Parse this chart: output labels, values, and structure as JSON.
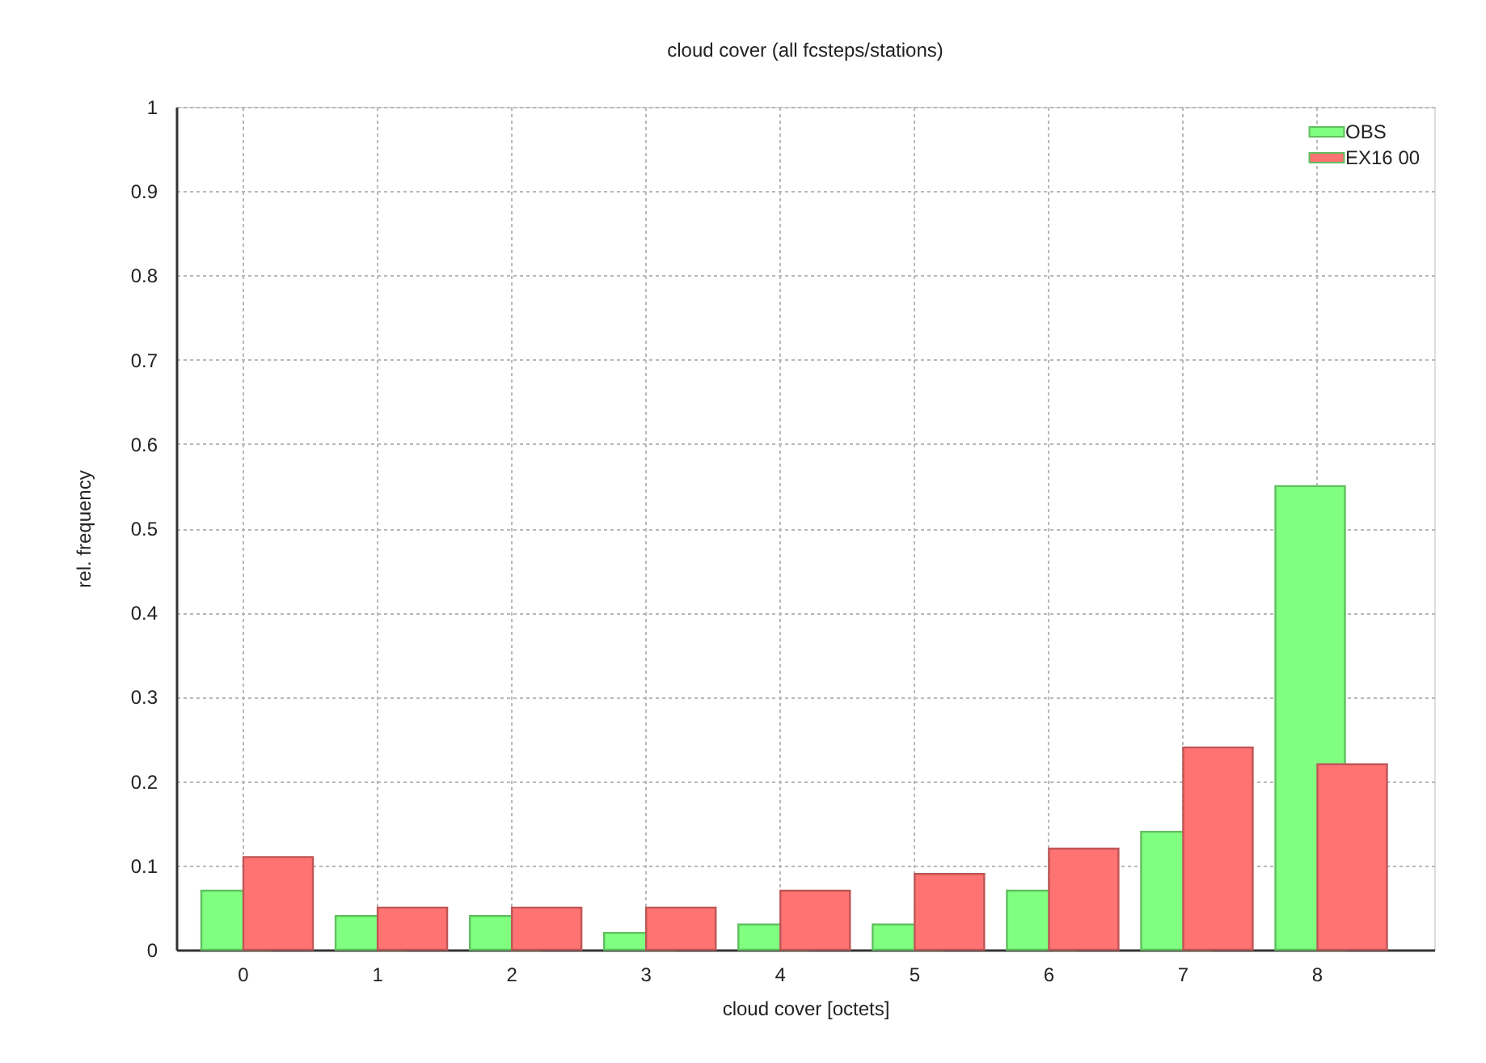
{
  "chart_data": {
    "type": "bar",
    "title": "cloud cover (all fcsteps/stations)",
    "xlabel": "cloud cover [octets]",
    "ylabel": "rel. frequency",
    "categories": [
      "0",
      "1",
      "2",
      "3",
      "4",
      "5",
      "6",
      "7",
      "8"
    ],
    "series": [
      {
        "name": "OBS",
        "color": "#80ff80",
        "values": [
          0.07,
          0.04,
          0.04,
          0.02,
          0.03,
          0.03,
          0.07,
          0.14,
          0.55
        ]
      },
      {
        "name": "EX16 00",
        "color": "#ff7373",
        "values": [
          0.11,
          0.05,
          0.05,
          0.05,
          0.07,
          0.09,
          0.12,
          0.24,
          0.22
        ]
      }
    ],
    "ylim": [
      0,
      1
    ],
    "yticks": [
      0,
      0.1,
      0.2,
      0.3,
      0.4,
      0.5,
      0.6,
      0.7,
      0.8,
      0.9,
      1
    ],
    "grid": true,
    "legend": "top right"
  }
}
